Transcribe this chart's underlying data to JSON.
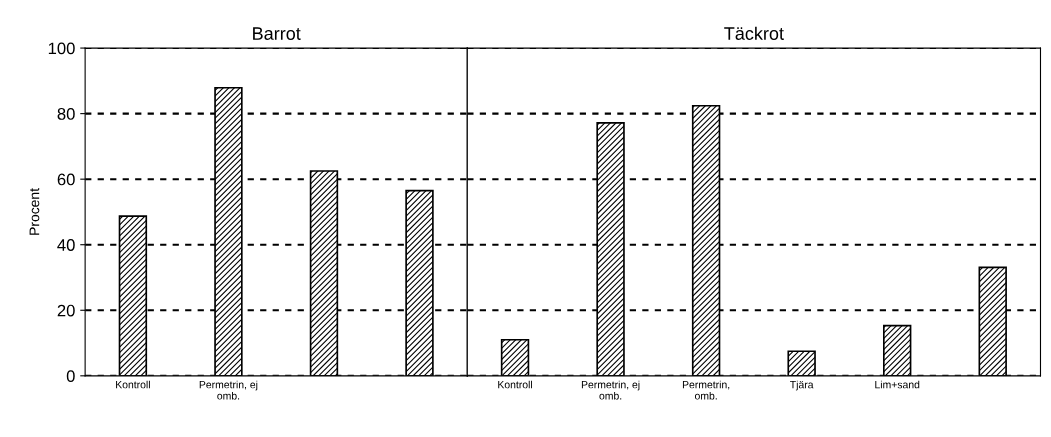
{
  "chart_data": [
    {
      "type": "bar",
      "title": "Barrot",
      "ylabel": "Procent",
      "categories": [
        "Kontroll",
        "Permetrin, ej\nomb.",
        null,
        null
      ],
      "values": [
        48.7,
        87.9,
        62.5,
        56.5
      ],
      "color": "#000000",
      "ylim": [
        0,
        100
      ],
      "yticks": [
        0,
        20,
        40,
        60,
        80,
        100
      ],
      "grid": "y",
      "line_style": "dashed"
    },
    {
      "type": "bar",
      "title": "Täckrot",
      "categories": [
        "Kontroll",
        "Permetrin, ej\nomb.",
        "Permetrin,\nomb.",
        "Tjära",
        "Lim+sand",
        null
      ],
      "values": [
        11,
        77.2,
        82.4,
        7.5,
        15.3,
        33.1
      ],
      "color": "#000000",
      "ylim": [
        0,
        100
      ],
      "yticks": [
        0,
        20,
        40,
        60,
        80,
        100
      ],
      "grid": "y",
      "line_style": "dashed",
      "tick_labels": "x"
    }
  ]
}
